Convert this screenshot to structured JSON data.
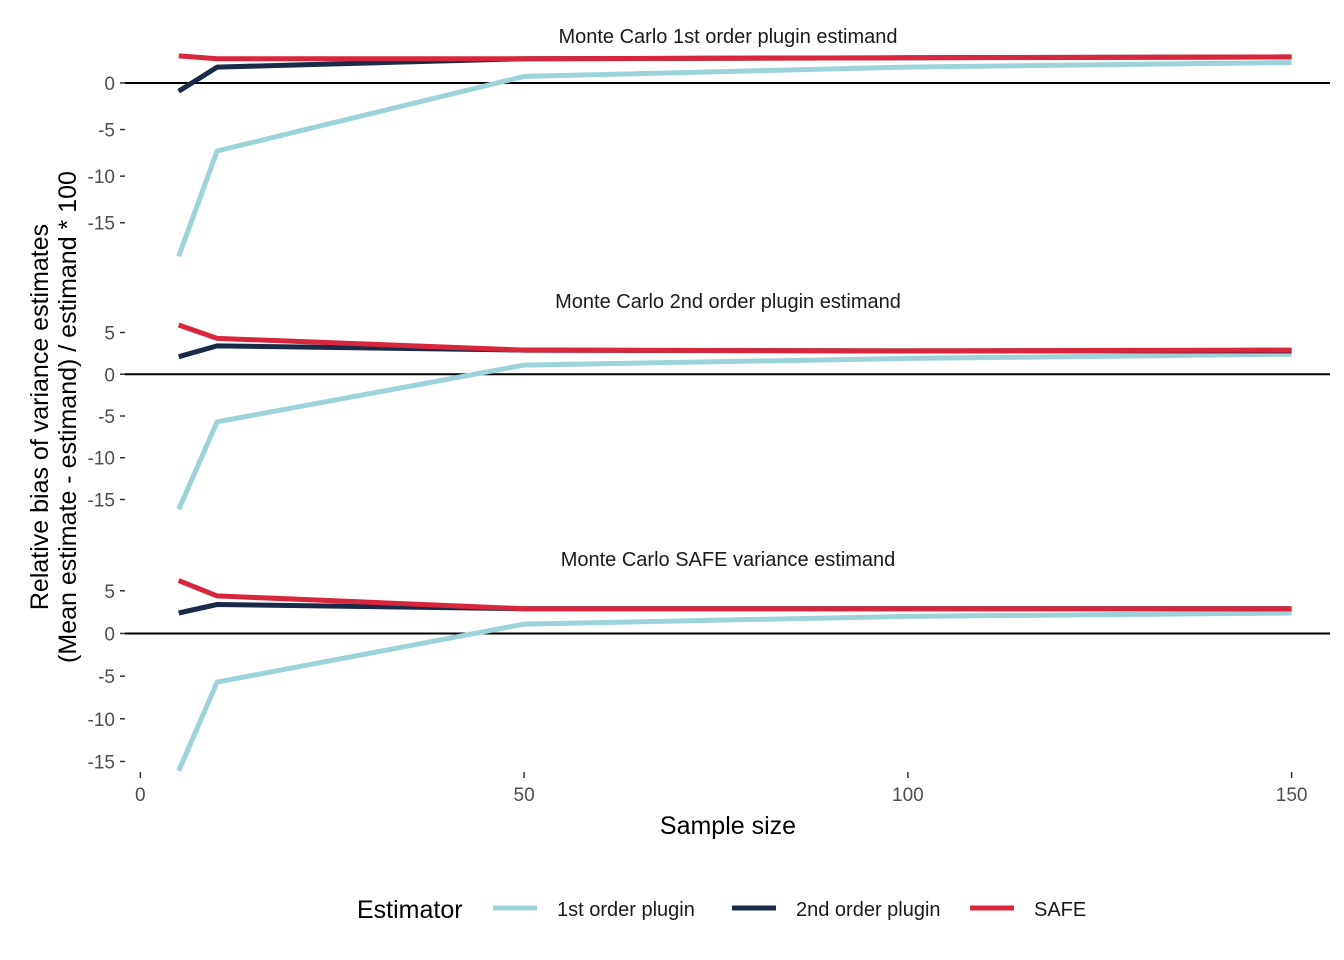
{
  "chart_data": {
    "type": "line",
    "xlabel": "Sample size",
    "ylabel_line1": "Relative bias of variance estimates",
    "ylabel_line2": "(Mean estimate - estimand) / estimand * 100",
    "x_ticks": [
      0,
      50,
      100,
      150
    ],
    "xlim": [
      -2,
      155
    ],
    "legend": {
      "title": "Estimator",
      "position": "bottom",
      "entries": [
        "1st order plugin",
        "2nd order plugin",
        "SAFE"
      ]
    },
    "colors": {
      "1st order plugin": "#9dd3d8",
      "2nd order plugin": "#1a2a47",
      "SAFE": "#d7263d"
    },
    "reference_line_y": 0,
    "grid": false,
    "x": [
      5,
      10,
      50,
      100,
      150
    ],
    "panels": [
      {
        "title": "Monte Carlo 1st order plugin estimand",
        "ylim": [
          -19,
          3
        ],
        "y_ticks": [
          0,
          -5,
          -10,
          -15
        ],
        "series": [
          {
            "name": "1st order plugin",
            "values": [
              -18.6,
              -7.3,
              0.7,
              1.7,
              2.2
            ]
          },
          {
            "name": "2nd order plugin",
            "values": [
              -0.9,
              1.7,
              2.6,
              2.7,
              2.8
            ]
          },
          {
            "name": "SAFE",
            "values": [
              2.9,
              2.6,
              2.6,
              2.7,
              2.8
            ]
          }
        ]
      },
      {
        "title": "Monte Carlo 2nd order plugin estimand",
        "ylim": [
          -16.5,
          6.5
        ],
        "y_ticks": [
          5,
          0,
          -5,
          -10,
          -15
        ],
        "series": [
          {
            "name": "1st order plugin",
            "values": [
              -16.2,
              -5.7,
              1.1,
              1.9,
              2.4
            ]
          },
          {
            "name": "2nd order plugin",
            "values": [
              2.1,
              3.4,
              2.9,
              2.8,
              2.8
            ]
          },
          {
            "name": "SAFE",
            "values": [
              5.9,
              4.3,
              2.9,
              2.8,
              2.9
            ]
          }
        ]
      },
      {
        "title": "Monte Carlo SAFE variance estimand",
        "ylim": [
          -16,
          6.5
        ],
        "y_ticks": [
          5,
          0,
          -5,
          -10,
          -15
        ],
        "series": [
          {
            "name": "1st order plugin",
            "values": [
              -16.1,
              -5.7,
              1.1,
              2.0,
              2.4
            ]
          },
          {
            "name": "2nd order plugin",
            "values": [
              2.4,
              3.4,
              2.9,
              2.9,
              2.9
            ]
          },
          {
            "name": "SAFE",
            "values": [
              6.2,
              4.4,
              2.9,
              2.9,
              2.9
            ]
          }
        ]
      }
    ]
  }
}
